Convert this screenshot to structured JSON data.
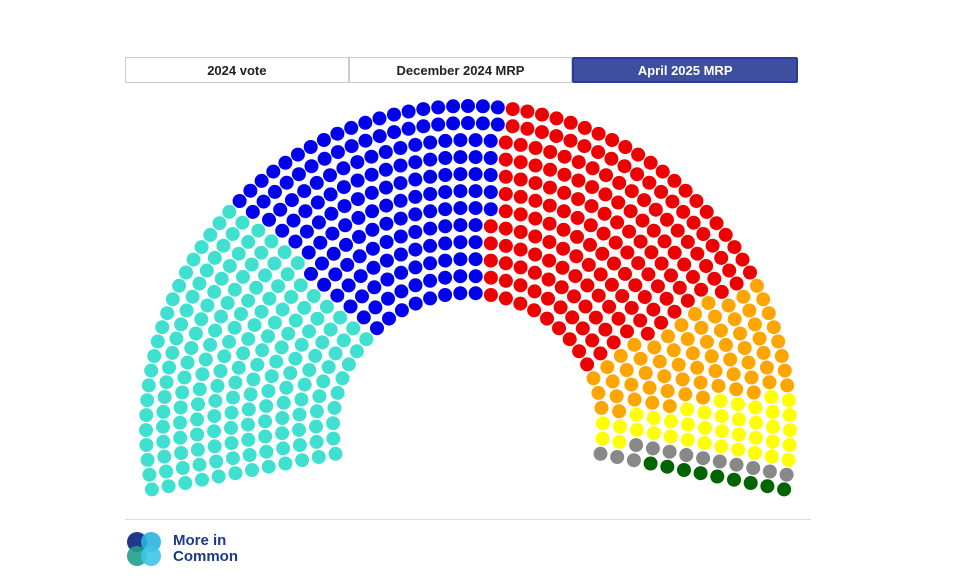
{
  "tabs": [
    {
      "label": "2024 vote",
      "active": false
    },
    {
      "label": "December 2024 MRP",
      "active": false
    },
    {
      "label": "April 2025 MRP",
      "active": true
    }
  ],
  "chart_data": {
    "type": "parliament",
    "values": [
      180,
      165,
      178,
      67,
      38,
      13,
      9
    ],
    "colors": [
      "#40e0d0",
      "#0000ee",
      "#ee0000",
      "#ffa500",
      "#ffff00",
      "#888888",
      "#006400"
    ]
  },
  "logo": "More in Common"
}
